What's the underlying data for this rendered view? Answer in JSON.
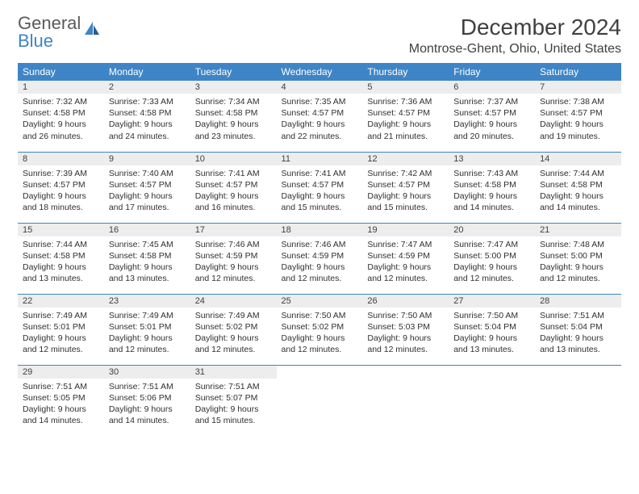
{
  "logo": {
    "word1": "General",
    "word2": "Blue"
  },
  "title": "December 2024",
  "location": "Montrose-Ghent, Ohio, United States",
  "colors": {
    "header_bg": "#3d85c6",
    "header_fg": "#ffffff",
    "daynum_bg": "#ededed",
    "row_divider": "#3d85c6",
    "body_text": "#303030",
    "title_text": "#404040",
    "logo_gray": "#5a5a5a",
    "logo_blue": "#3d85c6"
  },
  "weekdays": [
    "Sunday",
    "Monday",
    "Tuesday",
    "Wednesday",
    "Thursday",
    "Friday",
    "Saturday"
  ],
  "weeks": [
    [
      {
        "n": "1",
        "sr": "Sunrise: 7:32 AM",
        "ss": "Sunset: 4:58 PM",
        "d1": "Daylight: 9 hours",
        "d2": "and 26 minutes."
      },
      {
        "n": "2",
        "sr": "Sunrise: 7:33 AM",
        "ss": "Sunset: 4:58 PM",
        "d1": "Daylight: 9 hours",
        "d2": "and 24 minutes."
      },
      {
        "n": "3",
        "sr": "Sunrise: 7:34 AM",
        "ss": "Sunset: 4:58 PM",
        "d1": "Daylight: 9 hours",
        "d2": "and 23 minutes."
      },
      {
        "n": "4",
        "sr": "Sunrise: 7:35 AM",
        "ss": "Sunset: 4:57 PM",
        "d1": "Daylight: 9 hours",
        "d2": "and 22 minutes."
      },
      {
        "n": "5",
        "sr": "Sunrise: 7:36 AM",
        "ss": "Sunset: 4:57 PM",
        "d1": "Daylight: 9 hours",
        "d2": "and 21 minutes."
      },
      {
        "n": "6",
        "sr": "Sunrise: 7:37 AM",
        "ss": "Sunset: 4:57 PM",
        "d1": "Daylight: 9 hours",
        "d2": "and 20 minutes."
      },
      {
        "n": "7",
        "sr": "Sunrise: 7:38 AM",
        "ss": "Sunset: 4:57 PM",
        "d1": "Daylight: 9 hours",
        "d2": "and 19 minutes."
      }
    ],
    [
      {
        "n": "8",
        "sr": "Sunrise: 7:39 AM",
        "ss": "Sunset: 4:57 PM",
        "d1": "Daylight: 9 hours",
        "d2": "and 18 minutes."
      },
      {
        "n": "9",
        "sr": "Sunrise: 7:40 AM",
        "ss": "Sunset: 4:57 PM",
        "d1": "Daylight: 9 hours",
        "d2": "and 17 minutes."
      },
      {
        "n": "10",
        "sr": "Sunrise: 7:41 AM",
        "ss": "Sunset: 4:57 PM",
        "d1": "Daylight: 9 hours",
        "d2": "and 16 minutes."
      },
      {
        "n": "11",
        "sr": "Sunrise: 7:41 AM",
        "ss": "Sunset: 4:57 PM",
        "d1": "Daylight: 9 hours",
        "d2": "and 15 minutes."
      },
      {
        "n": "12",
        "sr": "Sunrise: 7:42 AM",
        "ss": "Sunset: 4:57 PM",
        "d1": "Daylight: 9 hours",
        "d2": "and 15 minutes."
      },
      {
        "n": "13",
        "sr": "Sunrise: 7:43 AM",
        "ss": "Sunset: 4:58 PM",
        "d1": "Daylight: 9 hours",
        "d2": "and 14 minutes."
      },
      {
        "n": "14",
        "sr": "Sunrise: 7:44 AM",
        "ss": "Sunset: 4:58 PM",
        "d1": "Daylight: 9 hours",
        "d2": "and 14 minutes."
      }
    ],
    [
      {
        "n": "15",
        "sr": "Sunrise: 7:44 AM",
        "ss": "Sunset: 4:58 PM",
        "d1": "Daylight: 9 hours",
        "d2": "and 13 minutes."
      },
      {
        "n": "16",
        "sr": "Sunrise: 7:45 AM",
        "ss": "Sunset: 4:58 PM",
        "d1": "Daylight: 9 hours",
        "d2": "and 13 minutes."
      },
      {
        "n": "17",
        "sr": "Sunrise: 7:46 AM",
        "ss": "Sunset: 4:59 PM",
        "d1": "Daylight: 9 hours",
        "d2": "and 12 minutes."
      },
      {
        "n": "18",
        "sr": "Sunrise: 7:46 AM",
        "ss": "Sunset: 4:59 PM",
        "d1": "Daylight: 9 hours",
        "d2": "and 12 minutes."
      },
      {
        "n": "19",
        "sr": "Sunrise: 7:47 AM",
        "ss": "Sunset: 4:59 PM",
        "d1": "Daylight: 9 hours",
        "d2": "and 12 minutes."
      },
      {
        "n": "20",
        "sr": "Sunrise: 7:47 AM",
        "ss": "Sunset: 5:00 PM",
        "d1": "Daylight: 9 hours",
        "d2": "and 12 minutes."
      },
      {
        "n": "21",
        "sr": "Sunrise: 7:48 AM",
        "ss": "Sunset: 5:00 PM",
        "d1": "Daylight: 9 hours",
        "d2": "and 12 minutes."
      }
    ],
    [
      {
        "n": "22",
        "sr": "Sunrise: 7:49 AM",
        "ss": "Sunset: 5:01 PM",
        "d1": "Daylight: 9 hours",
        "d2": "and 12 minutes."
      },
      {
        "n": "23",
        "sr": "Sunrise: 7:49 AM",
        "ss": "Sunset: 5:01 PM",
        "d1": "Daylight: 9 hours",
        "d2": "and 12 minutes."
      },
      {
        "n": "24",
        "sr": "Sunrise: 7:49 AM",
        "ss": "Sunset: 5:02 PM",
        "d1": "Daylight: 9 hours",
        "d2": "and 12 minutes."
      },
      {
        "n": "25",
        "sr": "Sunrise: 7:50 AM",
        "ss": "Sunset: 5:02 PM",
        "d1": "Daylight: 9 hours",
        "d2": "and 12 minutes."
      },
      {
        "n": "26",
        "sr": "Sunrise: 7:50 AM",
        "ss": "Sunset: 5:03 PM",
        "d1": "Daylight: 9 hours",
        "d2": "and 12 minutes."
      },
      {
        "n": "27",
        "sr": "Sunrise: 7:50 AM",
        "ss": "Sunset: 5:04 PM",
        "d1": "Daylight: 9 hours",
        "d2": "and 13 minutes."
      },
      {
        "n": "28",
        "sr": "Sunrise: 7:51 AM",
        "ss": "Sunset: 5:04 PM",
        "d1": "Daylight: 9 hours",
        "d2": "and 13 minutes."
      }
    ],
    [
      {
        "n": "29",
        "sr": "Sunrise: 7:51 AM",
        "ss": "Sunset: 5:05 PM",
        "d1": "Daylight: 9 hours",
        "d2": "and 14 minutes."
      },
      {
        "n": "30",
        "sr": "Sunrise: 7:51 AM",
        "ss": "Sunset: 5:06 PM",
        "d1": "Daylight: 9 hours",
        "d2": "and 14 minutes."
      },
      {
        "n": "31",
        "sr": "Sunrise: 7:51 AM",
        "ss": "Sunset: 5:07 PM",
        "d1": "Daylight: 9 hours",
        "d2": "and 15 minutes."
      },
      null,
      null,
      null,
      null
    ]
  ]
}
